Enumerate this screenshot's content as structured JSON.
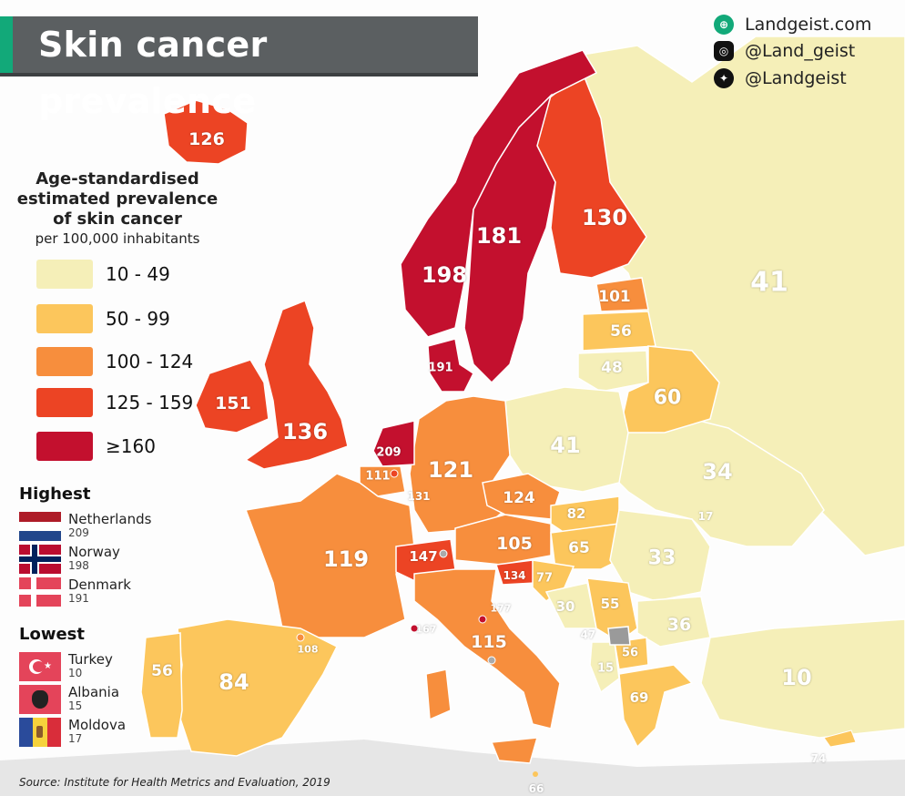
{
  "title": "Skin cancer prevalence",
  "social": {
    "website": "Landgeist.com",
    "instagram": "@Land_geist",
    "twitter": "@Landgeist"
  },
  "legend": {
    "title_lines": [
      "Age-standardised",
      "estimated prevalence",
      "of skin cancer"
    ],
    "subtitle": "per 100,000 inhabitants",
    "bins": [
      {
        "label": "10  -  49",
        "color": "#f5efb8"
      },
      {
        "label": "50  -  99",
        "color": "#fcc65c"
      },
      {
        "label": "100 - 124",
        "color": "#f78e3d"
      },
      {
        "label": "125 - 159",
        "color": "#ec4424"
      },
      {
        "label": "≥160",
        "color": "#c3102e"
      }
    ]
  },
  "highest": {
    "heading": "Highest",
    "items": [
      {
        "name": "Netherlands",
        "value": "209",
        "flag": "netherlands-flag"
      },
      {
        "name": "Norway",
        "value": "198",
        "flag": "norway-flag"
      },
      {
        "name": "Denmark",
        "value": "191",
        "flag": "denmark-flag"
      }
    ]
  },
  "lowest": {
    "heading": "Lowest",
    "items": [
      {
        "name": "Turkey",
        "value": "10",
        "flag": "turkey-flag"
      },
      {
        "name": "Albania",
        "value": "15",
        "flag": "albania-flag"
      },
      {
        "name": "Moldova",
        "value": "17",
        "flag": "moldova-flag"
      }
    ]
  },
  "countries": [
    {
      "name": "Iceland",
      "value": "126"
    },
    {
      "name": "Norway",
      "value": "198"
    },
    {
      "name": "Sweden",
      "value": "181"
    },
    {
      "name": "Finland",
      "value": "130"
    },
    {
      "name": "Russia",
      "value": "41"
    },
    {
      "name": "Estonia",
      "value": "101"
    },
    {
      "name": "Latvia",
      "value": "56"
    },
    {
      "name": "Lithuania",
      "value": "48"
    },
    {
      "name": "Denmark",
      "value": "191"
    },
    {
      "name": "Ireland",
      "value": "151"
    },
    {
      "name": "United Kingdom",
      "value": "136"
    },
    {
      "name": "Belarus",
      "value": "60"
    },
    {
      "name": "Poland",
      "value": "41"
    },
    {
      "name": "Ukraine",
      "value": "34"
    },
    {
      "name": "Netherlands",
      "value": "209"
    },
    {
      "name": "Belgium",
      "value": "111"
    },
    {
      "name": "Luxembourg",
      "value": "131"
    },
    {
      "name": "Germany",
      "value": "121"
    },
    {
      "name": "Czechia",
      "value": "124"
    },
    {
      "name": "Slovakia",
      "value": "82"
    },
    {
      "name": "Moldova",
      "value": "17"
    },
    {
      "name": "France",
      "value": "119"
    },
    {
      "name": "Switzerland",
      "value": "147"
    },
    {
      "name": "Austria",
      "value": "105"
    },
    {
      "name": "Hungary",
      "value": "65"
    },
    {
      "name": "Romania",
      "value": "33"
    },
    {
      "name": "Slovenia",
      "value": "134"
    },
    {
      "name": "Croatia",
      "value": "77"
    },
    {
      "name": "Serbia",
      "value": "55"
    },
    {
      "name": "Bosnia and Herzegovina",
      "value": "30"
    },
    {
      "name": "San Marino",
      "value": "177"
    },
    {
      "name": "Monaco",
      "value": "167"
    },
    {
      "name": "Andorra",
      "value": "108"
    },
    {
      "name": "Italy",
      "value": "115"
    },
    {
      "name": "Montenegro",
      "value": "47"
    },
    {
      "name": "Bulgaria",
      "value": "36"
    },
    {
      "name": "North Macedonia",
      "value": "56"
    },
    {
      "name": "Albania",
      "value": "15"
    },
    {
      "name": "Greece",
      "value": "69"
    },
    {
      "name": "Turkey",
      "value": "10"
    },
    {
      "name": "Portugal",
      "value": "56"
    },
    {
      "name": "Spain",
      "value": "84"
    },
    {
      "name": "Cyprus",
      "value": "74"
    },
    {
      "name": "Malta",
      "value": "66"
    }
  ],
  "source": "Source: Institute for Health Metrics and Evaluation, 2019"
}
